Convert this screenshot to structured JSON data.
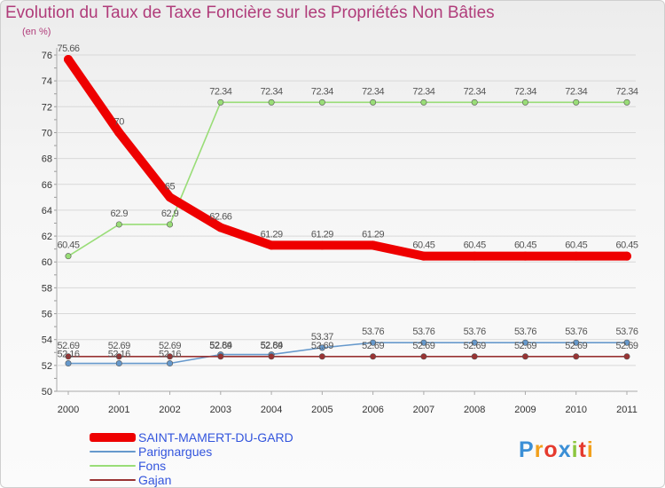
{
  "chart_data": {
    "type": "line",
    "title": "Evolution du Taux de Taxe Foncière sur les Propriétés Non Bâties",
    "ylabel": "(en %)",
    "xlabel": "",
    "ylim": [
      50,
      76
    ],
    "y_ticks": [
      50,
      52,
      54,
      56,
      58,
      60,
      62,
      64,
      66,
      68,
      70,
      72,
      74,
      76
    ],
    "categories": [
      "2000",
      "2001",
      "2002",
      "2003",
      "2004",
      "2005",
      "2006",
      "2007",
      "2008",
      "2009",
      "2010",
      "2011"
    ],
    "series": [
      {
        "name": "SAINT-MAMERT-DU-GARD",
        "color": "#ee0000",
        "values": [
          75.66,
          70,
          65,
          62.66,
          61.29,
          61.29,
          61.29,
          60.45,
          60.45,
          60.45,
          60.45,
          60.45
        ],
        "labels": [
          "75.66",
          "70",
          "65",
          "62.66",
          "61.29",
          "61.29",
          "61.29",
          "60.45",
          "60.45",
          "60.45",
          "60.45",
          "60.45"
        ]
      },
      {
        "name": "Parignargues",
        "color": "#6699cc",
        "values": [
          52.16,
          52.16,
          52.16,
          52.84,
          52.84,
          53.37,
          53.76,
          53.76,
          53.76,
          53.76,
          53.76,
          53.76
        ],
        "labels": [
          "52.16",
          "52.16",
          "52.16",
          "52.84",
          "52.84",
          "53.37",
          "53.76",
          "53.76",
          "53.76",
          "53.76",
          "53.76",
          "53.76"
        ]
      },
      {
        "name": "Fons",
        "color": "#99dd77",
        "values": [
          60.45,
          62.9,
          62.9,
          72.34,
          72.34,
          72.34,
          72.34,
          72.34,
          72.34,
          72.34,
          72.34,
          72.34
        ],
        "labels": [
          "60.45",
          "62.9",
          "62.9",
          "72.34",
          "72.34",
          "72.34",
          "72.34",
          "72.34",
          "72.34",
          "72.34",
          "72.34",
          "72.34"
        ]
      },
      {
        "name": "Gajan",
        "color": "#993333",
        "values": [
          52.69,
          52.69,
          52.69,
          52.69,
          52.69,
          52.69,
          52.69,
          52.69,
          52.69,
          52.69,
          52.69,
          52.69
        ],
        "labels": [
          "52.69",
          "52.69",
          "52.69",
          "52.69",
          "52.69",
          "52.69",
          "52.69",
          "52.69",
          "52.69",
          "52.69",
          "52.69",
          "52.69"
        ]
      }
    ]
  },
  "legend": {
    "items": [
      {
        "label": "SAINT-MAMERT-DU-GARD",
        "color": "#ee0000"
      },
      {
        "label": "Parignargues",
        "color": "#6699cc"
      },
      {
        "label": "Fons",
        "color": "#99dd77"
      },
      {
        "label": "Gajan",
        "color": "#993333"
      }
    ]
  },
  "logo": {
    "letters": [
      "P",
      "r",
      "o",
      "x",
      "i",
      "t",
      "i"
    ]
  }
}
